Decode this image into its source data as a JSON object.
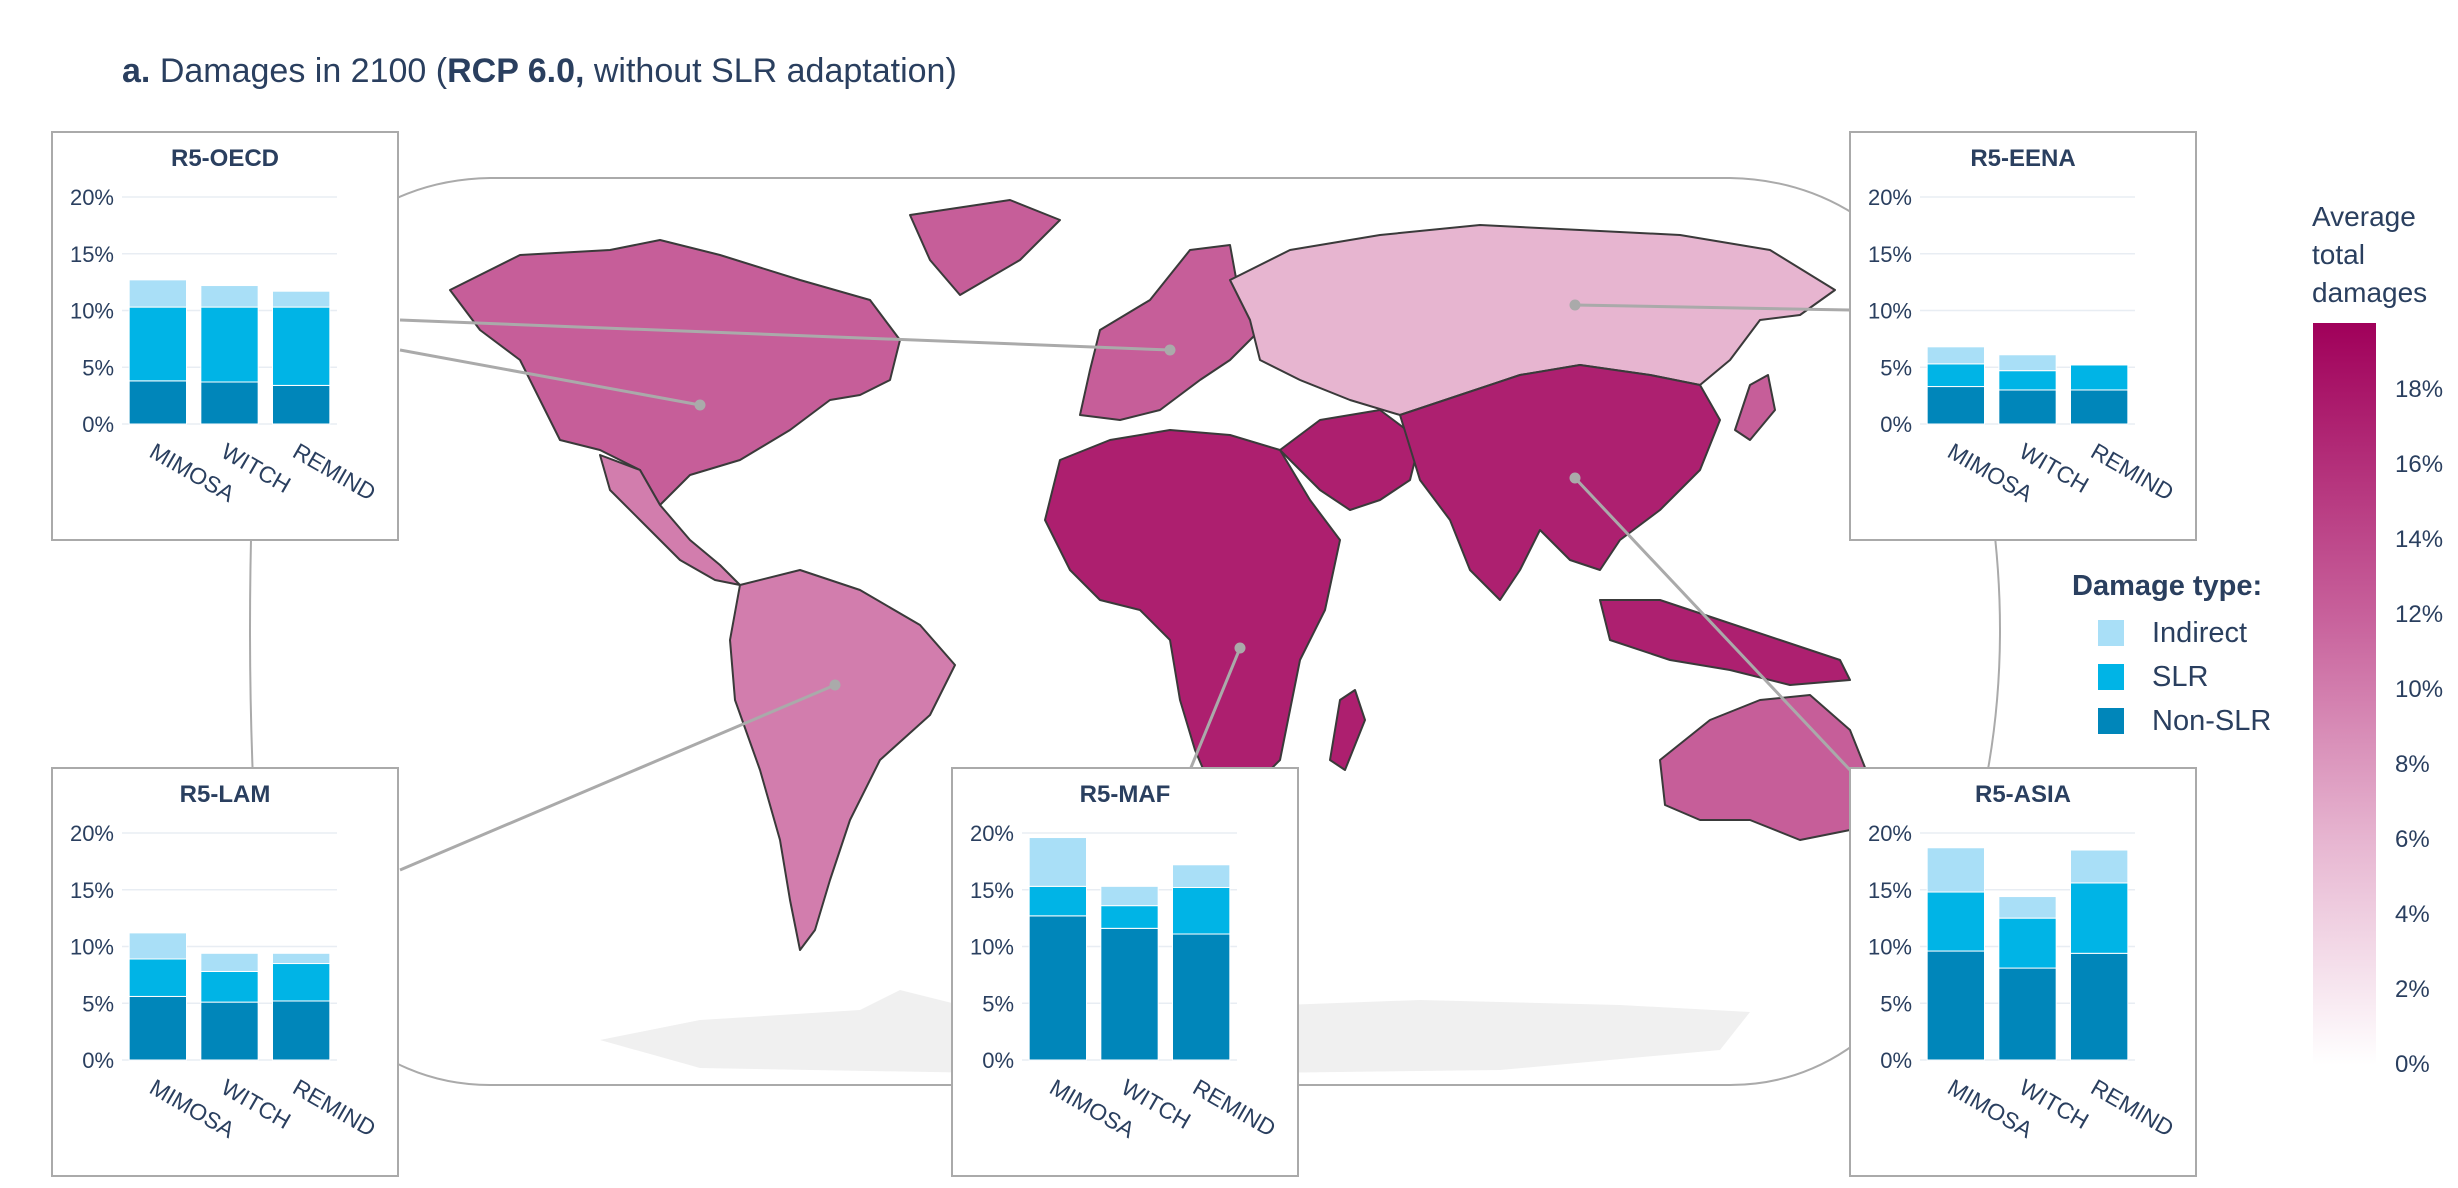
{
  "title": {
    "prefix": "a.",
    "pre": "Damages in 2100 (",
    "bold": "RCP 6.0,",
    "post": " without SLR adaptation)"
  },
  "colors": {
    "indirect": "#a9dff7",
    "slr": "#00b4e6",
    "non_slr": "#0086ba",
    "map_low": "#fdf6fa",
    "map_high": "#a0005a",
    "ocean_outline": "#aaaaaa",
    "antarctica": "#f0f0f0"
  },
  "legend": {
    "title": "Damage type:",
    "items": [
      "Indirect",
      "SLR",
      "Non-SLR"
    ]
  },
  "colorbar": {
    "title_lines": [
      "Average",
      "total",
      "damages"
    ],
    "ticks": [
      "0%",
      "2%",
      "4%",
      "6%",
      "8%",
      "10%",
      "12%",
      "14%",
      "16%",
      "18%"
    ],
    "range": [
      0,
      19.8
    ]
  },
  "chart_data": [
    {
      "type": "bar",
      "stacked": true,
      "title": "R5-OECD",
      "map_value_pct": 12.2,
      "categories": [
        "MIMOSA",
        "WITCH",
        "REMIND"
      ],
      "yticks": [
        "0%",
        "5%",
        "10%",
        "15%",
        "20%"
      ],
      "ylim": [
        0,
        20
      ],
      "series": [
        {
          "name": "Non-SLR",
          "values": [
            3.8,
            3.7,
            3.4
          ]
        },
        {
          "name": "SLR",
          "values": [
            6.5,
            6.6,
            6.9
          ]
        },
        {
          "name": "Indirect",
          "values": [
            2.4,
            1.9,
            1.4
          ]
        }
      ]
    },
    {
      "type": "bar",
      "stacked": true,
      "title": "R5-EENA",
      "map_value_pct": 6.0,
      "categories": [
        "MIMOSA",
        "WITCH",
        "REMIND"
      ],
      "yticks": [
        "0%",
        "5%",
        "10%",
        "15%",
        "20%"
      ],
      "ylim": [
        0,
        20
      ],
      "series": [
        {
          "name": "Non-SLR",
          "values": [
            3.3,
            3.0,
            3.0
          ]
        },
        {
          "name": "SLR",
          "values": [
            2.0,
            1.7,
            2.2
          ]
        },
        {
          "name": "Indirect",
          "values": [
            1.5,
            1.4,
            0.0
          ]
        }
      ]
    },
    {
      "type": "bar",
      "stacked": true,
      "title": "R5-LAM",
      "map_value_pct": 10.0,
      "categories": [
        "MIMOSA",
        "WITCH",
        "REMIND"
      ],
      "yticks": [
        "0%",
        "5%",
        "10%",
        "15%",
        "20%"
      ],
      "ylim": [
        0,
        20
      ],
      "series": [
        {
          "name": "Non-SLR",
          "values": [
            5.6,
            5.1,
            5.2
          ]
        },
        {
          "name": "SLR",
          "values": [
            3.3,
            2.7,
            3.3
          ]
        },
        {
          "name": "Indirect",
          "values": [
            2.3,
            1.6,
            0.9
          ]
        }
      ]
    },
    {
      "type": "bar",
      "stacked": true,
      "title": "R5-MAF",
      "map_value_pct": 17.3,
      "categories": [
        "MIMOSA",
        "WITCH",
        "REMIND"
      ],
      "yticks": [
        "0%",
        "5%",
        "10%",
        "15%",
        "20%"
      ],
      "ylim": [
        0,
        20
      ],
      "series": [
        {
          "name": "Non-SLR",
          "values": [
            12.7,
            11.6,
            11.1
          ]
        },
        {
          "name": "SLR",
          "values": [
            2.6,
            2.0,
            4.1
          ]
        },
        {
          "name": "Indirect",
          "values": [
            4.3,
            1.7,
            2.0
          ]
        }
      ]
    },
    {
      "type": "bar",
      "stacked": true,
      "title": "R5-ASIA",
      "map_value_pct": 17.2,
      "categories": [
        "MIMOSA",
        "WITCH",
        "REMIND"
      ],
      "yticks": [
        "0%",
        "5%",
        "10%",
        "15%",
        "20%"
      ],
      "ylim": [
        0,
        20
      ],
      "series": [
        {
          "name": "Non-SLR",
          "values": [
            9.6,
            8.1,
            9.4
          ]
        },
        {
          "name": "SLR",
          "values": [
            5.2,
            4.4,
            6.2
          ]
        },
        {
          "name": "Indirect",
          "values": [
            3.9,
            1.9,
            2.9
          ]
        }
      ]
    }
  ]
}
